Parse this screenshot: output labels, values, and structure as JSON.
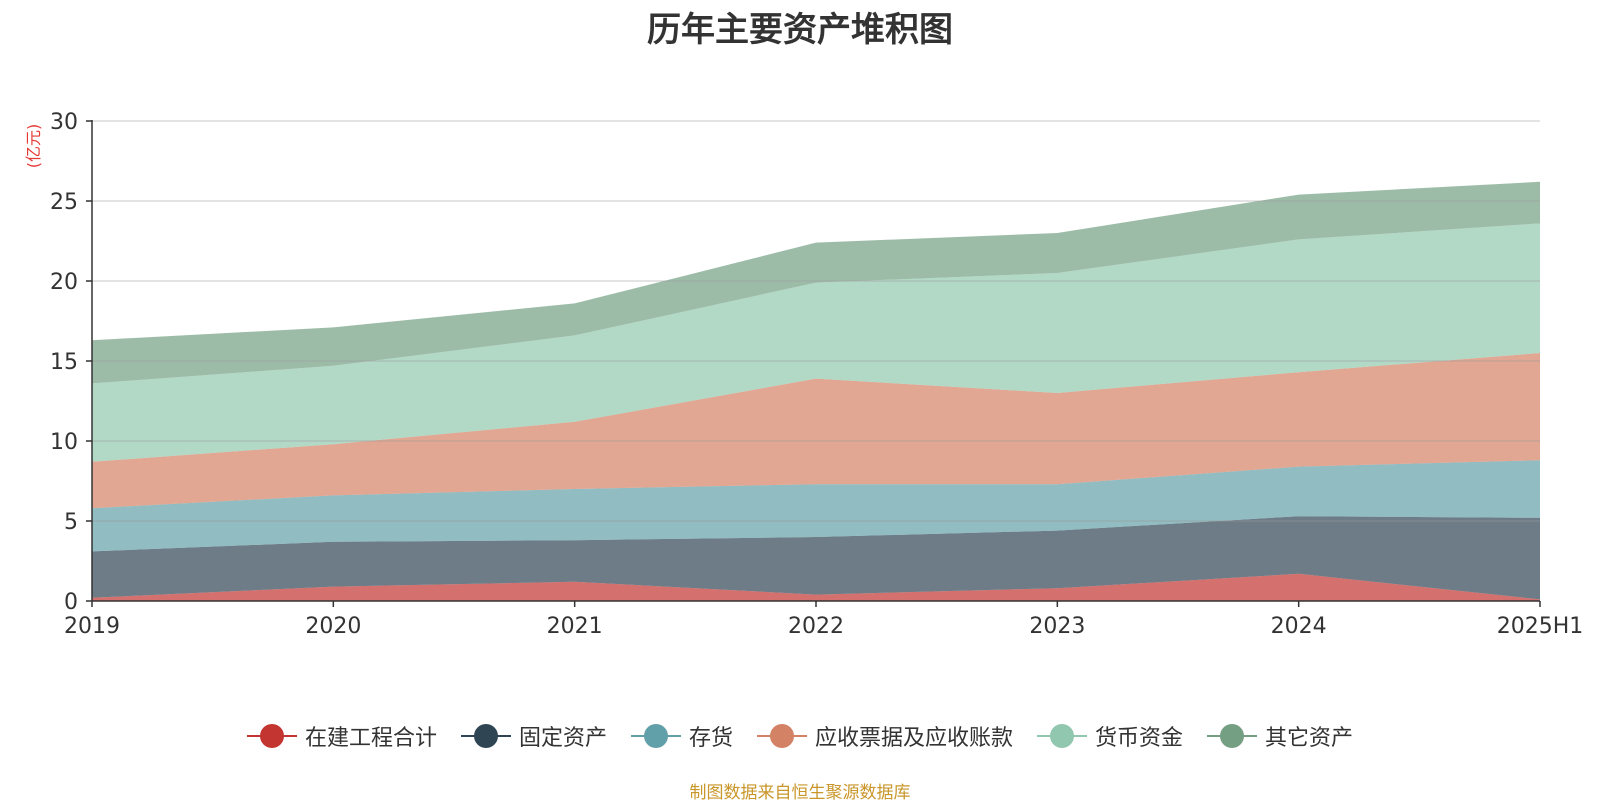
{
  "title": "历年主要资产堆积图",
  "unit_label": "(亿元)",
  "source": "制图数据来自恒生聚源数据库",
  "chart_data": {
    "type": "area",
    "stacked": true,
    "categories": [
      "2019",
      "2020",
      "2021",
      "2022",
      "2023",
      "2024",
      "2025H1"
    ],
    "ylim": [
      0,
      30
    ],
    "yticks": [
      0,
      5,
      10,
      15,
      20,
      25,
      30
    ],
    "grid": true,
    "legend_position": "bottom",
    "series": [
      {
        "name": "在建工程合计",
        "color": "#c23531",
        "values": [
          0.2,
          0.9,
          1.2,
          0.4,
          0.8,
          1.7,
          0.1
        ]
      },
      {
        "name": "固定资产",
        "color": "#2f4554",
        "values": [
          2.9,
          2.8,
          2.6,
          3.6,
          3.6,
          3.6,
          5.1
        ]
      },
      {
        "name": "存货",
        "color": "#61a0a8",
        "values": [
          2.7,
          2.9,
          3.2,
          3.3,
          2.9,
          3.1,
          3.6
        ]
      },
      {
        "name": "应收票据及应收账款",
        "color": "#d48265",
        "values": [
          2.9,
          3.2,
          4.2,
          6.6,
          5.7,
          5.9,
          6.7
        ]
      },
      {
        "name": "货币资金",
        "color": "#91c7ae",
        "values": [
          4.9,
          4.9,
          5.4,
          6.0,
          7.5,
          8.3,
          8.1
        ]
      },
      {
        "name": "其它资产",
        "color": "#749f83",
        "values": [
          2.7,
          2.4,
          2.0,
          2.5,
          2.5,
          2.8,
          2.6
        ]
      }
    ]
  }
}
